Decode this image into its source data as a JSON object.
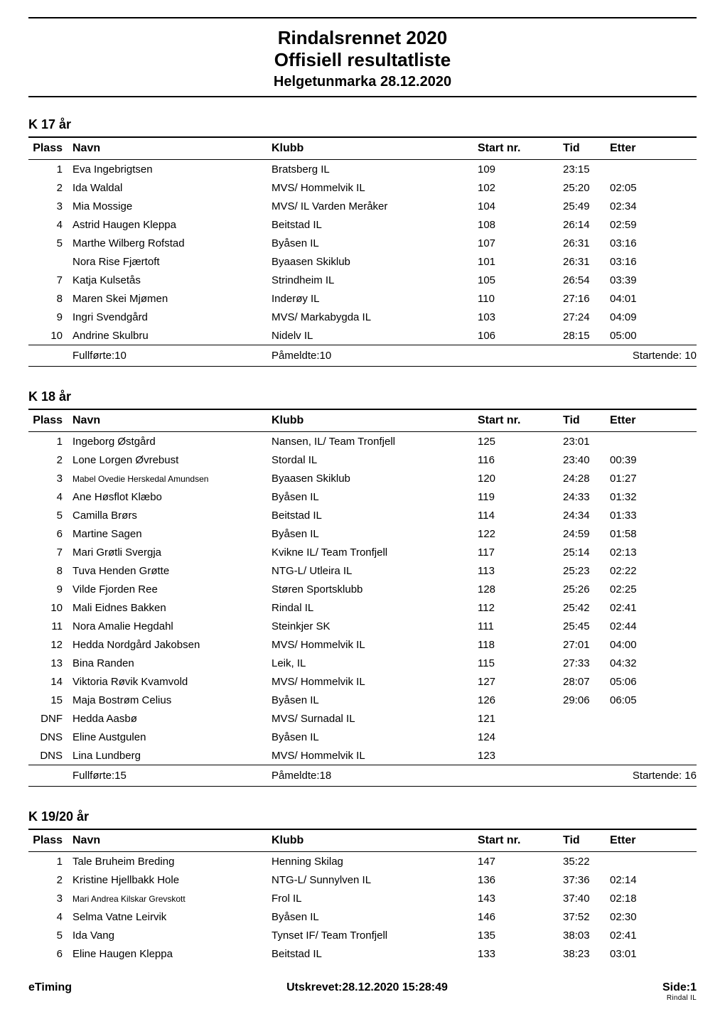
{
  "header": {
    "title_line1": "Rindalsrennet 2020",
    "title_line2": "Offisiell resultatliste",
    "subtitle": "Helgetunmarka 28.12.2020"
  },
  "columns": {
    "plass": "Plass",
    "navn": "Navn",
    "klubb": "Klubb",
    "start": "Start nr.",
    "tid": "Tid",
    "etter": "Etter"
  },
  "summary_labels": {
    "fullforte": "Fullførte:",
    "pameldte": "Påmeldte:",
    "startende": "Startende:"
  },
  "sections": [
    {
      "title": "K 17 år",
      "rows": [
        {
          "plass": "1",
          "navn": "Eva Ingebrigtsen",
          "klubb": "Bratsberg IL",
          "start": "109",
          "tid": "23:15",
          "etter": ""
        },
        {
          "plass": "2",
          "navn": "Ida Waldal",
          "klubb": "MVS/ Hommelvik IL",
          "start": "102",
          "tid": "25:20",
          "etter": "02:05"
        },
        {
          "plass": "3",
          "navn": "Mia Mossige",
          "klubb": "MVS/ IL Varden Meråker",
          "start": "104",
          "tid": "25:49",
          "etter": "02:34"
        },
        {
          "plass": "4",
          "navn": "Astrid Haugen Kleppa",
          "klubb": "Beitstad IL",
          "start": "108",
          "tid": "26:14",
          "etter": "02:59"
        },
        {
          "plass": "5",
          "navn": "Marthe Wilberg Rofstad",
          "klubb": "Byåsen IL",
          "start": "107",
          "tid": "26:31",
          "etter": "03:16"
        },
        {
          "plass": "",
          "navn": "Nora Rise Fjærtoft",
          "klubb": "Byaasen Skiklub",
          "start": "101",
          "tid": "26:31",
          "etter": "03:16"
        },
        {
          "plass": "7",
          "navn": "Katja Kulsetås",
          "klubb": "Strindheim IL",
          "start": "105",
          "tid": "26:54",
          "etter": "03:39"
        },
        {
          "plass": "8",
          "navn": "Maren Skei Mjømen",
          "klubb": "Inderøy IL",
          "start": "110",
          "tid": "27:16",
          "etter": "04:01"
        },
        {
          "plass": "9",
          "navn": "Ingri Svendgård",
          "klubb": "MVS/ Markabygda IL",
          "start": "103",
          "tid": "27:24",
          "etter": "04:09"
        },
        {
          "plass": "10",
          "navn": "Andrine Skulbru",
          "klubb": "Nidelv IL",
          "start": "106",
          "tid": "28:15",
          "etter": "05:00"
        }
      ],
      "summary": {
        "fullforte": "10",
        "pameldte": "10",
        "startende": "10"
      }
    },
    {
      "title": "K 18 år",
      "rows": [
        {
          "plass": "1",
          "navn": "Ingeborg Østgård",
          "klubb": "Nansen, IL/ Team Tronfjell",
          "start": "125",
          "tid": "23:01",
          "etter": ""
        },
        {
          "plass": "2",
          "navn": "Lone Lorgen Øvrebust",
          "klubb": "Stordal IL",
          "start": "116",
          "tid": "23:40",
          "etter": "00:39"
        },
        {
          "plass": "3",
          "navn": "Mabel Ovedie Herskedal Amundsen",
          "navn_small": true,
          "klubb": "Byaasen Skiklub",
          "start": "120",
          "tid": "24:28",
          "etter": "01:27"
        },
        {
          "plass": "4",
          "navn": "Ane Høsflot Klæbo",
          "klubb": "Byåsen IL",
          "start": "119",
          "tid": "24:33",
          "etter": "01:32"
        },
        {
          "plass": "5",
          "navn": "Camilla Brørs",
          "klubb": "Beitstad IL",
          "start": "114",
          "tid": "24:34",
          "etter": "01:33"
        },
        {
          "plass": "6",
          "navn": "Martine Sagen",
          "klubb": "Byåsen IL",
          "start": "122",
          "tid": "24:59",
          "etter": "01:58"
        },
        {
          "plass": "7",
          "navn": "Mari Grøtli Svergja",
          "klubb": "Kvikne IL/ Team Tronfjell",
          "start": "117",
          "tid": "25:14",
          "etter": "02:13"
        },
        {
          "plass": "8",
          "navn": "Tuva Henden Grøtte",
          "klubb": "NTG-L/ Utleira IL",
          "start": "113",
          "tid": "25:23",
          "etter": "02:22"
        },
        {
          "plass": "9",
          "navn": "Vilde Fjorden Ree",
          "klubb": "Støren Sportsklubb",
          "start": "128",
          "tid": "25:26",
          "etter": "02:25"
        },
        {
          "plass": "10",
          "navn": "Mali Eidnes Bakken",
          "klubb": "Rindal IL",
          "start": "112",
          "tid": "25:42",
          "etter": "02:41"
        },
        {
          "plass": "11",
          "navn": "Nora Amalie Hegdahl",
          "klubb": "Steinkjer SK",
          "start": "111",
          "tid": "25:45",
          "etter": "02:44"
        },
        {
          "plass": "12",
          "navn": "Hedda Nordgård Jakobsen",
          "klubb": "MVS/ Hommelvik IL",
          "start": "118",
          "tid": "27:01",
          "etter": "04:00"
        },
        {
          "plass": "13",
          "navn": "Bina Randen",
          "klubb": "Leik, IL",
          "start": "115",
          "tid": "27:33",
          "etter": "04:32"
        },
        {
          "plass": "14",
          "navn": "Viktoria Røvik Kvamvold",
          "klubb": "MVS/ Hommelvik IL",
          "start": "127",
          "tid": "28:07",
          "etter": "05:06"
        },
        {
          "plass": "15",
          "navn": "Maja Bostrøm Celius",
          "klubb": "Byåsen IL",
          "start": "126",
          "tid": "29:06",
          "etter": "06:05"
        },
        {
          "plass": "DNF",
          "navn": "Hedda Aasbø",
          "klubb": "MVS/ Surnadal IL",
          "start": "121",
          "tid": "",
          "etter": ""
        },
        {
          "plass": "DNS",
          "navn": "Eline Austgulen",
          "klubb": "Byåsen IL",
          "start": "124",
          "tid": "",
          "etter": ""
        },
        {
          "plass": "DNS",
          "navn": "Lina Lundberg",
          "klubb": "MVS/ Hommelvik IL",
          "start": "123",
          "tid": "",
          "etter": ""
        }
      ],
      "summary": {
        "fullforte": "15",
        "pameldte": "18",
        "startende": "16"
      }
    },
    {
      "title": "K 19/20 år",
      "rows": [
        {
          "plass": "1",
          "navn": "Tale Bruheim Breding",
          "klubb": "Henning Skilag",
          "start": "147",
          "tid": "35:22",
          "etter": ""
        },
        {
          "plass": "2",
          "navn": "Kristine Hjellbakk Hole",
          "klubb": "NTG-L/ Sunnylven IL",
          "start": "136",
          "tid": "37:36",
          "etter": "02:14"
        },
        {
          "plass": "3",
          "navn": "Mari Andrea Kilskar Grevskott",
          "navn_small": true,
          "klubb": "Frol IL",
          "start": "143",
          "tid": "37:40",
          "etter": "02:18"
        },
        {
          "plass": "4",
          "navn": "Selma Vatne Leirvik",
          "klubb": "Byåsen IL",
          "start": "146",
          "tid": "37:52",
          "etter": "02:30"
        },
        {
          "plass": "5",
          "navn": "Ida Vang",
          "klubb": "Tynset IF/ Team Tronfjell",
          "start": "135",
          "tid": "38:03",
          "etter": "02:41"
        },
        {
          "plass": "6",
          "navn": "Eline Haugen Kleppa",
          "klubb": "Beitstad IL",
          "start": "133",
          "tid": "38:23",
          "etter": "03:01"
        }
      ]
    }
  ],
  "footer": {
    "left": "eTiming",
    "center": "Utskrevet:28.12.2020 15:28:49",
    "right_main": "Side:1",
    "right_small": "Rindal IL"
  }
}
